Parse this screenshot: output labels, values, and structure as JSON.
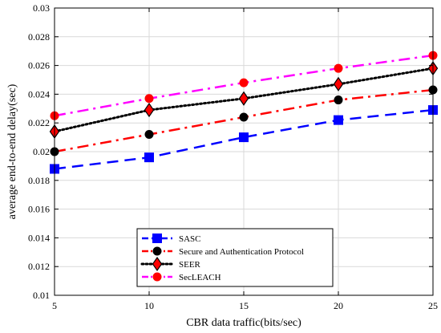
{
  "chart_data": {
    "type": "line",
    "title": "",
    "xlabel": "CBR data traffic(bits/sec)",
    "ylabel": "average end-to-end delay(sec)",
    "x": [
      5,
      10,
      15,
      20,
      25
    ],
    "xticks": [
      "5",
      "10",
      "15",
      "20",
      "25"
    ],
    "yticks": [
      "0.01",
      "0.012",
      "0.014",
      "0.016",
      "0.018",
      "0.02",
      "0.022",
      "0.024",
      "0.026",
      "0.028",
      "0.03"
    ],
    "xlim": [
      5,
      25
    ],
    "ylim": [
      0.01,
      0.03
    ],
    "grid": true,
    "legend_position": "bottom-center",
    "series": [
      {
        "name": "SASC",
        "values": [
          0.0188,
          0.0196,
          0.021,
          0.0222,
          0.0229
        ],
        "color": "#0000ff",
        "marker": "square",
        "line_style": "dashed"
      },
      {
        "name": "Secure and Authentication Protocol",
        "values": [
          0.02,
          0.0212,
          0.0224,
          0.0236,
          0.0243
        ],
        "color": "#ff0000",
        "marker_color": "#000000",
        "marker": "circle",
        "line_style": "dash-dot"
      },
      {
        "name": "SEER",
        "values": [
          0.0214,
          0.0229,
          0.0237,
          0.0247,
          0.0258
        ],
        "color": "#000000",
        "marker_color": "#ff0000",
        "marker": "diamond",
        "line_style": "dotted"
      },
      {
        "name": "SecLEACH",
        "values": [
          0.0225,
          0.0237,
          0.0248,
          0.0258,
          0.0267
        ],
        "color": "#ff00ff",
        "marker_color": "#ff0000",
        "marker": "circle",
        "line_style": "dash-dot"
      }
    ]
  }
}
